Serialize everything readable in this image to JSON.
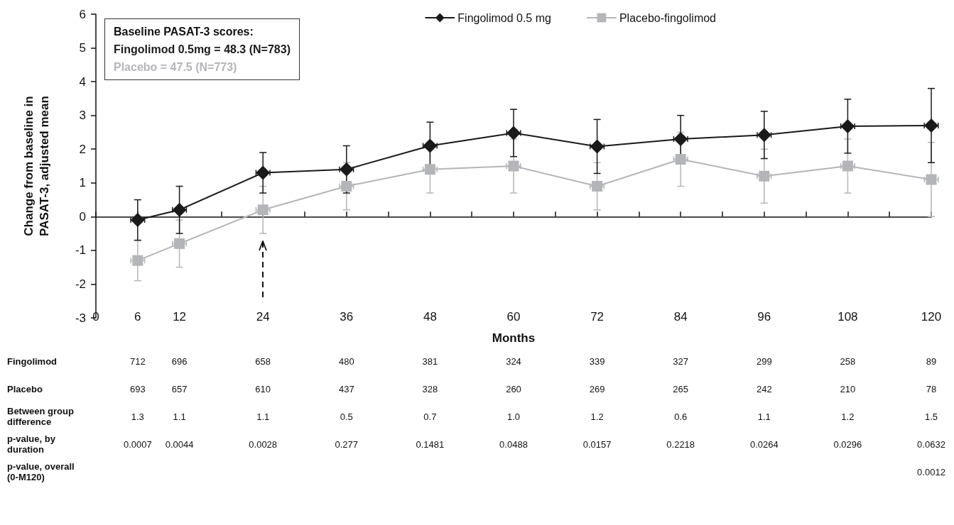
{
  "chart_data": [
    {
      "type": "line",
      "x": [
        6,
        12,
        24,
        36,
        48,
        60,
        72,
        84,
        96,
        108,
        120
      ],
      "xlabel": "Months",
      "ylabel": "Change from baseline in\nPASAT-3, adjusted mean",
      "xlim": [
        0,
        120
      ],
      "xticks": [
        0,
        6,
        12,
        {
          "value": 18,
          "label": null
        },
        24,
        {
          "value": 30,
          "label": null
        },
        36,
        {
          "value": 42,
          "label": null
        },
        48,
        {
          "value": 54,
          "label": null
        },
        60,
        {
          "value": 66,
          "label": null
        },
        72,
        {
          "value": 78,
          "label": null
        },
        84,
        {
          "value": 90,
          "label": null
        },
        96,
        {
          "value": 102,
          "label": null
        },
        108,
        {
          "value": 114,
          "label": null
        },
        120
      ],
      "ylim": [
        -3,
        6
      ],
      "yticks": [
        -3,
        -2,
        -1,
        0,
        1,
        2,
        3,
        4,
        5,
        6
      ],
      "series": [
        {
          "name": "Fingolimod 0.5 mg",
          "color": "#1a1a1a",
          "marker": "diamond",
          "values": [
            -0.1,
            0.2,
            1.3,
            1.4,
            2.1,
            2.48,
            2.08,
            2.3,
            2.42,
            2.68,
            2.7
          ],
          "errors": [
            0.6,
            0.7,
            0.6,
            0.7,
            0.7,
            0.7,
            0.8,
            0.7,
            0.7,
            0.8,
            1.1
          ],
          "xerrors": [
            1,
            1,
            1,
            1,
            1,
            1,
            1,
            1,
            1,
            1,
            1
          ]
        },
        {
          "name": "Placebo-fingolimod",
          "color": "#b4b5b8",
          "marker": "square",
          "values": [
            -1.3,
            -0.8,
            0.2,
            0.9,
            1.4,
            1.5,
            0.9,
            1.7,
            1.2,
            1.5,
            1.1
          ],
          "errors": [
            0.6,
            0.7,
            0.7,
            0.7,
            0.7,
            0.8,
            0.7,
            0.8,
            0.8,
            0.8,
            1.1
          ],
          "xerrors": [
            1,
            1,
            1,
            1,
            1,
            1,
            1,
            1,
            1,
            1,
            1
          ]
        }
      ],
      "legend": "top",
      "line_style": "solid",
      "annotations": [
        "Baseline PASAT-3 scores:",
        "Fingolimod 0.5mg = 48.3 (N=783)",
        "Placebo = 47.5 (N=773)"
      ]
    },
    {
      "type": "other",
      "y_categories": [
        "Fingolimod",
        "Placebo",
        "Between group difference",
        "p-value, by duration",
        "p-value, overall (0-M120)"
      ],
      "cell_labels": [
        [
          "712",
          "696",
          "658",
          "480",
          "381",
          "324",
          "339",
          "327",
          "299",
          "258",
          "89"
        ],
        [
          "693",
          "657",
          "610",
          "437",
          "328",
          "260",
          "269",
          "265",
          "242",
          "210",
          "78"
        ],
        [
          "1.3",
          "1.1",
          "1.1",
          "0.5",
          "0.7",
          "1.0",
          "1.2",
          "0.6",
          "1.1",
          "1.2",
          "1.5"
        ],
        [
          "0.0007",
          "0.0044",
          "0.0028",
          "0.277",
          "0.1481",
          "0.0488",
          "0.0157",
          "0.2218",
          "0.0264",
          "0.0296",
          "0.0632"
        ],
        [
          null,
          null,
          null,
          null,
          null,
          null,
          null,
          null,
          null,
          null,
          "0.0012"
        ]
      ]
    }
  ]
}
